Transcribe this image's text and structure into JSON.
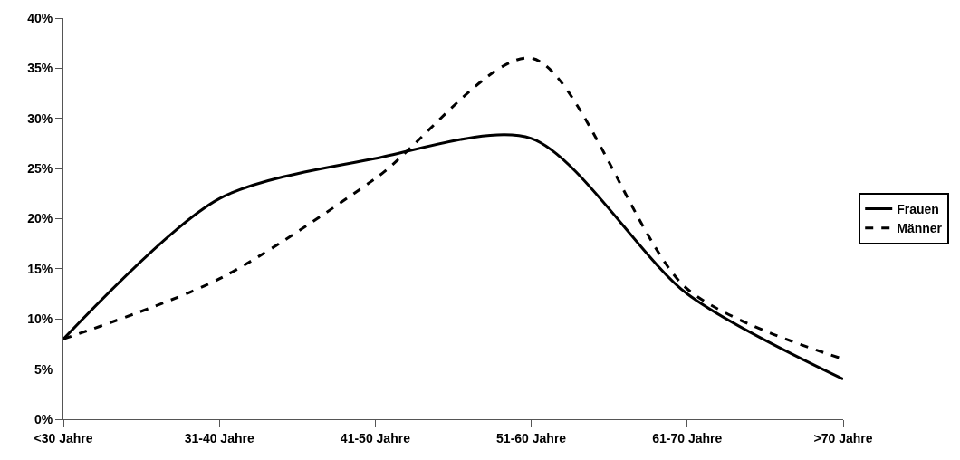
{
  "chart_data": {
    "type": "line",
    "categories": [
      "<30 Jahre",
      "31-40 Jahre",
      "41-50 Jahre",
      "51-60 Jahre",
      "61-70 Jahre",
      ">70 Jahre"
    ],
    "series": [
      {
        "name": "Frauen",
        "color": "#000000",
        "line_style": "solid",
        "values": [
          0.08,
          0.22,
          0.26,
          0.28,
          0.125,
          0.04
        ]
      },
      {
        "name": "Männer",
        "color": "#000000",
        "line_style": "dashed",
        "values": [
          0.08,
          0.14,
          0.24,
          0.36,
          0.13,
          0.06
        ]
      }
    ],
    "ylim": [
      0,
      0.4
    ],
    "yticks": [
      {
        "value": 0,
        "label": "0%"
      },
      {
        "value": 0.05,
        "label": "5%"
      },
      {
        "value": 0.1,
        "label": "10%"
      },
      {
        "value": 0.15,
        "label": "15%"
      },
      {
        "value": 0.2,
        "label": "20%"
      },
      {
        "value": 0.25,
        "label": "25%"
      },
      {
        "value": 0.3,
        "label": "30%"
      },
      {
        "value": 0.35,
        "label": "35%"
      },
      {
        "value": 0.4,
        "label": "40%"
      }
    ],
    "grid": false,
    "legend": "right",
    "marker": "none"
  }
}
